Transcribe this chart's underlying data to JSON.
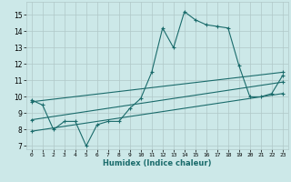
{
  "xlabel": "Humidex (Indice chaleur)",
  "bg_color": "#cce8e8",
  "grid_color": "#b0c8c8",
  "line_color": "#1a6b6b",
  "xlim": [
    -0.5,
    23.5
  ],
  "ylim": [
    6.8,
    15.8
  ],
  "xticks": [
    0,
    1,
    2,
    3,
    4,
    5,
    6,
    7,
    8,
    9,
    10,
    11,
    12,
    13,
    14,
    15,
    16,
    17,
    18,
    19,
    20,
    21,
    22,
    23
  ],
  "yticks": [
    7,
    8,
    9,
    10,
    11,
    12,
    13,
    14,
    15
  ],
  "line1_x": [
    0,
    1,
    2,
    3,
    4,
    5,
    6,
    7,
    8,
    9,
    10,
    11,
    12,
    13,
    14,
    15,
    16,
    17,
    18,
    19,
    20,
    21,
    22,
    23
  ],
  "line1_y": [
    9.8,
    9.5,
    8.0,
    8.5,
    8.5,
    7.0,
    8.3,
    8.5,
    8.5,
    9.3,
    9.9,
    11.5,
    14.2,
    13.0,
    15.2,
    14.7,
    14.4,
    14.3,
    14.2,
    11.9,
    10.0,
    10.0,
    10.2,
    11.3
  ],
  "line2_x": [
    0,
    23
  ],
  "line2_y": [
    7.9,
    10.2
  ],
  "line3_x": [
    0,
    23
  ],
  "line3_y": [
    8.6,
    10.9
  ],
  "line4_x": [
    0,
    23
  ],
  "line4_y": [
    9.7,
    11.5
  ]
}
